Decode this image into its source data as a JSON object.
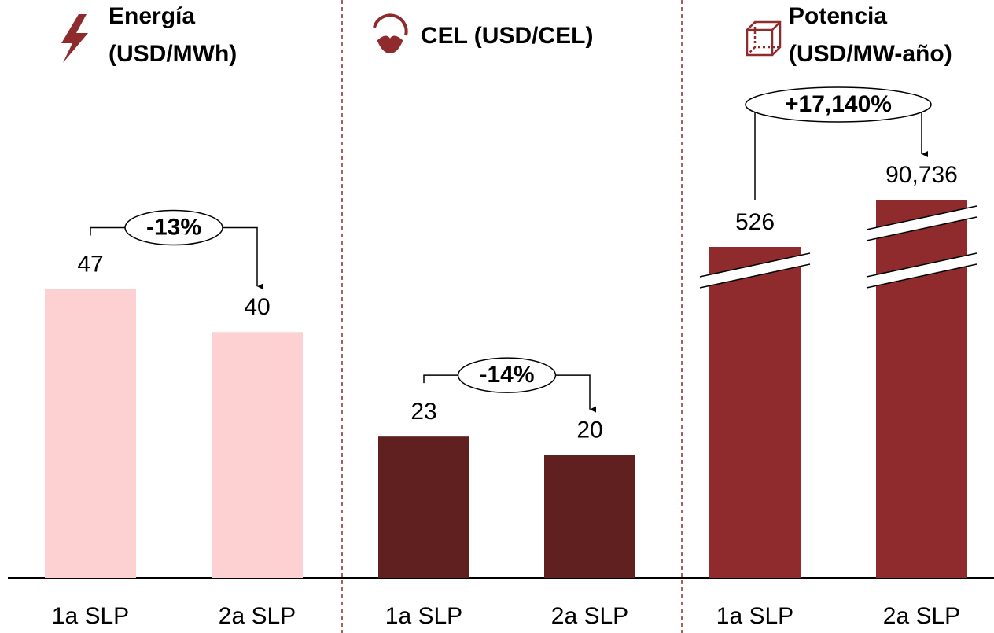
{
  "chart_data": [
    {
      "type": "bar",
      "title": [
        "Energía",
        "(USD/MWh)"
      ],
      "categories": [
        "1a SLP",
        "2a SLP"
      ],
      "values": [
        47,
        40
      ],
      "color": "#fdd0d2",
      "ylim": [
        0,
        94
      ],
      "annotation": "-13%"
    },
    {
      "type": "bar",
      "title": [
        "CEL (USD/CEL)"
      ],
      "categories": [
        "1a SLP",
        "2a SLP"
      ],
      "values": [
        23,
        20
      ],
      "color": "#612020",
      "ylim": [
        0,
        94
      ],
      "annotation": "-14%"
    },
    {
      "type": "bar",
      "title": [
        "Potencia",
        "(USD/MW-año)"
      ],
      "categories": [
        "1a SLP",
        "2a SLP"
      ],
      "values": [
        526,
        90736
      ],
      "value_labels": [
        "526",
        "90,736"
      ],
      "color": "#8f2a2d",
      "broken_axis": true,
      "annotation": "+17,140%"
    }
  ]
}
